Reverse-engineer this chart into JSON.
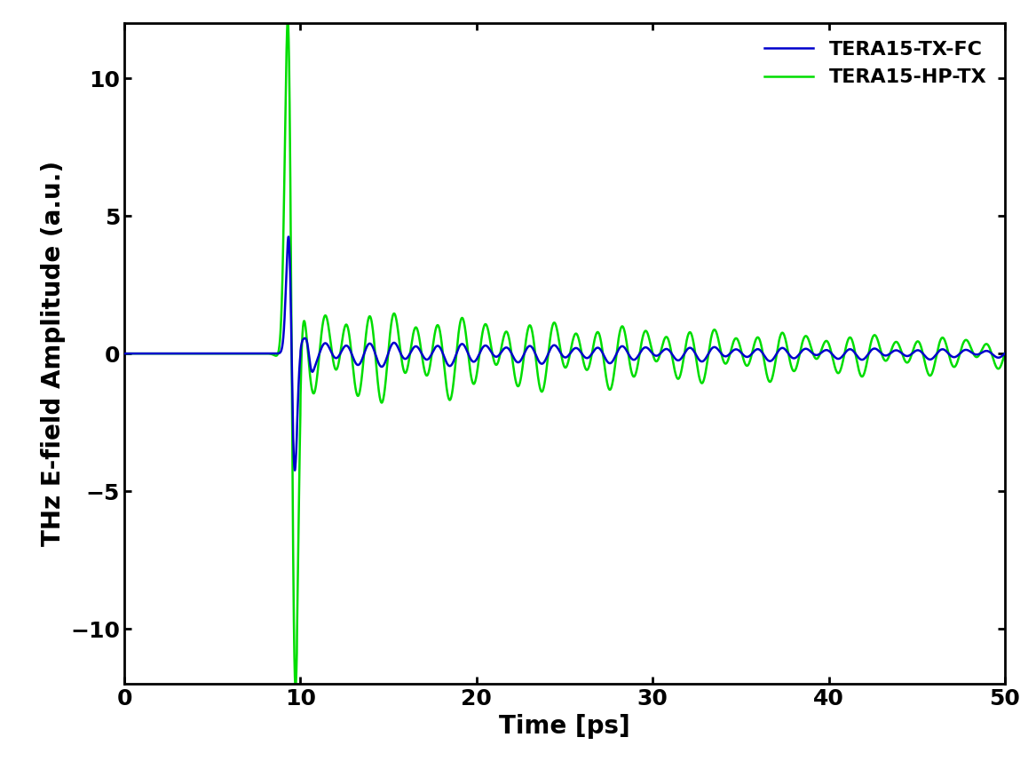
{
  "title": "",
  "xlabel": "Time [ps]",
  "ylabel": "THz E-field Amplitude (a.u.)",
  "xlim": [
    0,
    50
  ],
  "ylim": [
    -12,
    12
  ],
  "yticks": [
    -10,
    -5,
    0,
    5,
    10
  ],
  "xticks": [
    0,
    10,
    20,
    30,
    40,
    50
  ],
  "legend": [
    {
      "label": "TERA15-HP-TX",
      "color": "#00DD00"
    },
    {
      "label": "TERA15-TX-FC",
      "color": "#0000CC"
    }
  ],
  "green_color": "#00DD00",
  "blue_color": "#0000CC",
  "background_color": "#ffffff",
  "linewidth_green": 1.8,
  "linewidth_blue": 1.8,
  "label_fontsize": 20,
  "tick_fontsize": 18,
  "legend_fontsize": 16
}
